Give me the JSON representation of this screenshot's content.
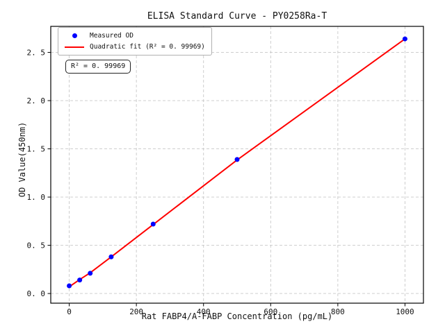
{
  "chart_data": {
    "type": "scatter",
    "title": "ELISA Standard Curve - PY0258Ra-T",
    "xlabel": "Rat FABP4/A-FABP Concentration (pg/mL)",
    "ylabel": "OD Value(450nm)",
    "xlim": [
      -55,
      1055
    ],
    "ylim": [
      -0.1,
      2.77
    ],
    "grid": true,
    "x_ticks": {
      "values": [
        0,
        200,
        400,
        600,
        800,
        1000
      ],
      "labels": [
        "0",
        "200",
        "400",
        "600",
        "800",
        "1000"
      ]
    },
    "y_ticks": {
      "values": [
        0.0,
        0.5,
        1.0,
        1.5,
        2.0,
        2.5
      ],
      "labels": [
        "0. 0",
        "0. 5",
        "1. 0",
        "1. 5",
        "2. 0",
        "2. 5"
      ]
    },
    "series": [
      {
        "name": "Measured OD",
        "type": "scatter",
        "color": "#0000ff",
        "x": [
          0,
          31.25,
          62.5,
          125,
          250,
          500,
          1000
        ],
        "y": [
          0.08,
          0.14,
          0.21,
          0.38,
          0.72,
          1.39,
          2.64
        ]
      },
      {
        "name": "Quadratic fit (R² = 0. 99969)",
        "type": "line",
        "color": "#ff0000",
        "x": [
          0,
          31.25,
          62.5,
          125,
          250,
          500,
          1000
        ],
        "y": [
          0.07,
          0.145,
          0.215,
          0.38,
          0.715,
          1.385,
          2.64
        ]
      }
    ],
    "legend": {
      "position": "upper left",
      "entries": [
        {
          "label": "Measured OD",
          "marker": "circle",
          "color": "#0000ff"
        },
        {
          "label": "Quadratic fit (R² = 0. 99969)",
          "marker": "line",
          "color": "#ff0000"
        }
      ]
    },
    "annotation": {
      "text": "R² = 0. 99969"
    },
    "r_squared": 0.99969
  },
  "colors": {
    "background": "#ffffff",
    "points": "#0000ff",
    "fit_line": "#ff0000",
    "grid": "#c8c8c8",
    "axis": "#000000",
    "tick_text": "#111111",
    "legend_border": "#b0b0b0",
    "annotation_border": "#222222"
  }
}
